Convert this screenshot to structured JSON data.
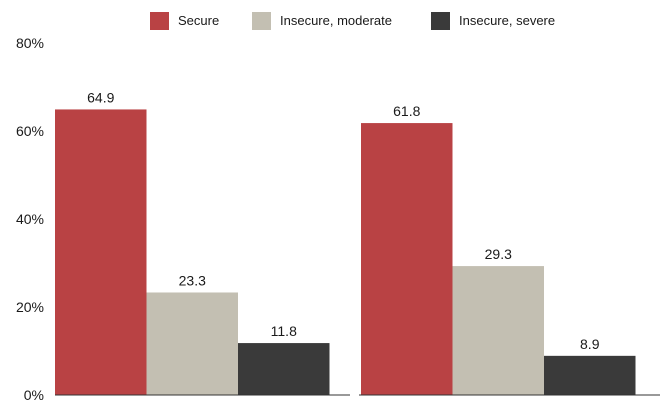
{
  "chart_data": {
    "type": "bar",
    "categories": [
      "",
      ""
    ],
    "series": [
      {
        "name": "Secure",
        "values": [
          64.9,
          61.8
        ],
        "color": "#b94244"
      },
      {
        "name": "Insecure, moderate",
        "values": [
          23.3,
          29.3
        ],
        "color": "#c3bfb2"
      },
      {
        "name": "Insecure, severe",
        "values": [
          11.8,
          8.9
        ],
        "color": "#3a3a3a"
      }
    ],
    "data_labels": [
      [
        "64.9",
        "61.8"
      ],
      [
        "23.3",
        "29.3"
      ],
      [
        "11.8",
        "8.9"
      ]
    ],
    "ylim": [
      0,
      80
    ],
    "yticks": [
      0,
      20,
      40,
      60,
      80
    ],
    "ytick_labels": [
      "0%",
      "20%",
      "40%",
      "60%",
      "80%"
    ],
    "xlabel": "",
    "ylabel": "",
    "grid": false,
    "legend_position": "top"
  }
}
